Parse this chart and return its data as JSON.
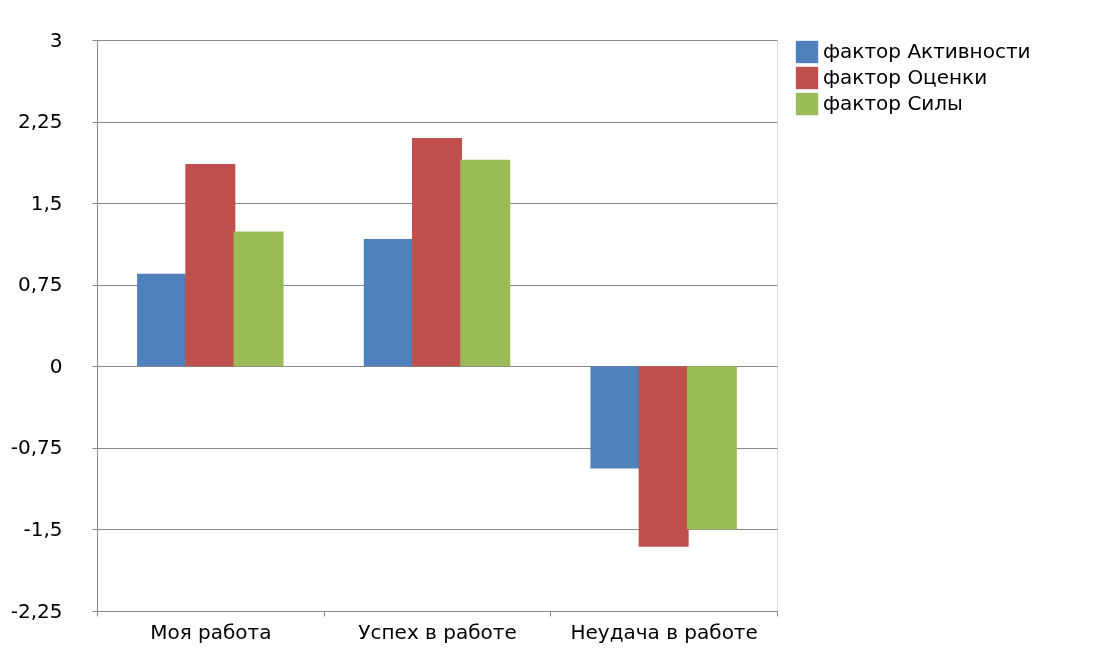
{
  "chart_data": {
    "type": "bar",
    "categories": [
      "Моя работа",
      "Успех в работе",
      "Неудача в работе"
    ],
    "series": [
      {
        "name": "фактор Активности",
        "color": "#4f81bd",
        "values": [
          0.85,
          1.17,
          -0.94
        ]
      },
      {
        "name": "фактор Оценки",
        "color": "#c0504d",
        "values": [
          1.86,
          2.1,
          -1.66
        ]
      },
      {
        "name": "фактор Силы",
        "color": "#9bbb59",
        "values": [
          1.24,
          1.9,
          -1.5
        ]
      }
    ],
    "ylim": [
      -2.25,
      3
    ],
    "yticks": [
      {
        "value": -2.25,
        "label": "-2,25"
      },
      {
        "value": -1.5,
        "label": "-1,5"
      },
      {
        "value": -0.75,
        "label": "-0,75"
      },
      0,
      {
        "value": 0.75,
        "label": "0,75"
      },
      {
        "value": 1.5,
        "label": "1,5"
      },
      {
        "value": 2.25,
        "label": "2,25"
      },
      3
    ],
    "grid": "y",
    "legend": "right"
  }
}
